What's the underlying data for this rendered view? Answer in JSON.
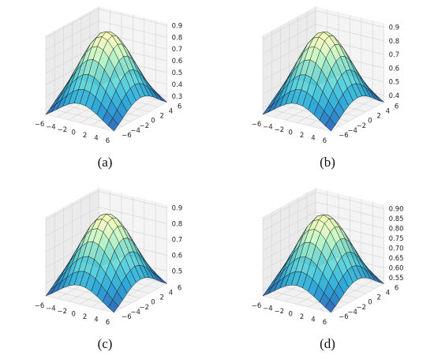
{
  "figure": {
    "panels": [
      {
        "caption": "(a)",
        "chart_data": {
          "type": "surface3d",
          "x_ticks": [
            "−6",
            "−4",
            "−2",
            "0",
            "2",
            "4",
            "6"
          ],
          "y_ticks": [
            "−6",
            "−4",
            "−2",
            "0",
            "2",
            "4",
            "6"
          ],
          "z_ticks": [
            "0.3",
            "0.4",
            "0.5",
            "0.6",
            "0.7",
            "0.8",
            "0.9"
          ],
          "xlim": [
            -6,
            6
          ],
          "ylim": [
            -6,
            6
          ],
          "zlim": [
            0.25,
            0.92
          ],
          "z_peak": 0.9,
          "z_corner": 0.25,
          "colormap": "YlGnBu",
          "grid": true
        }
      },
      {
        "caption": "(b)",
        "chart_data": {
          "type": "surface3d",
          "x_ticks": [
            "−6",
            "−4",
            "−2",
            "0",
            "2",
            "4",
            "6"
          ],
          "y_ticks": [
            "−6",
            "−4",
            "−2",
            "0",
            "2",
            "4",
            "6"
          ],
          "z_ticks": [
            "0.4",
            "0.5",
            "0.6",
            "0.7",
            "0.8",
            "0.9"
          ],
          "xlim": [
            -6,
            6
          ],
          "ylim": [
            -6,
            6
          ],
          "zlim": [
            0.35,
            0.93
          ],
          "z_peak": 0.91,
          "z_corner": 0.35,
          "colormap": "YlGnBu",
          "grid": true
        }
      },
      {
        "caption": "(c)",
        "chart_data": {
          "type": "surface3d",
          "x_ticks": [
            "−6",
            "−4",
            "−2",
            "0",
            "2",
            "4",
            "6"
          ],
          "y_ticks": [
            "−6",
            "−4",
            "−2",
            "0",
            "2",
            "4",
            "6"
          ],
          "z_ticks": [
            "0.5",
            "0.6",
            "0.7",
            "0.8",
            "0.9"
          ],
          "xlim": [
            -6,
            6
          ],
          "ylim": [
            -6,
            6
          ],
          "zlim": [
            0.42,
            0.92
          ],
          "z_peak": 0.9,
          "z_corner": 0.42,
          "colormap": "YlGnBu",
          "grid": true
        }
      },
      {
        "caption": "(d)",
        "chart_data": {
          "type": "surface3d",
          "x_ticks": [
            "−6",
            "−4",
            "−2",
            "0",
            "2",
            "4",
            "6"
          ],
          "y_ticks": [
            "−6",
            "−4",
            "−2",
            "0",
            "2",
            "4",
            "6"
          ],
          "z_ticks": [
            "0.55",
            "0.60",
            "0.65",
            "0.70",
            "0.75",
            "0.80",
            "0.85",
            "0.90"
          ],
          "xlim": [
            -6,
            6
          ],
          "ylim": [
            -6,
            6
          ],
          "zlim": [
            0.52,
            0.92
          ],
          "z_peak": 0.9,
          "z_corner": 0.52,
          "colormap": "YlGnBu",
          "grid": true
        }
      }
    ]
  }
}
